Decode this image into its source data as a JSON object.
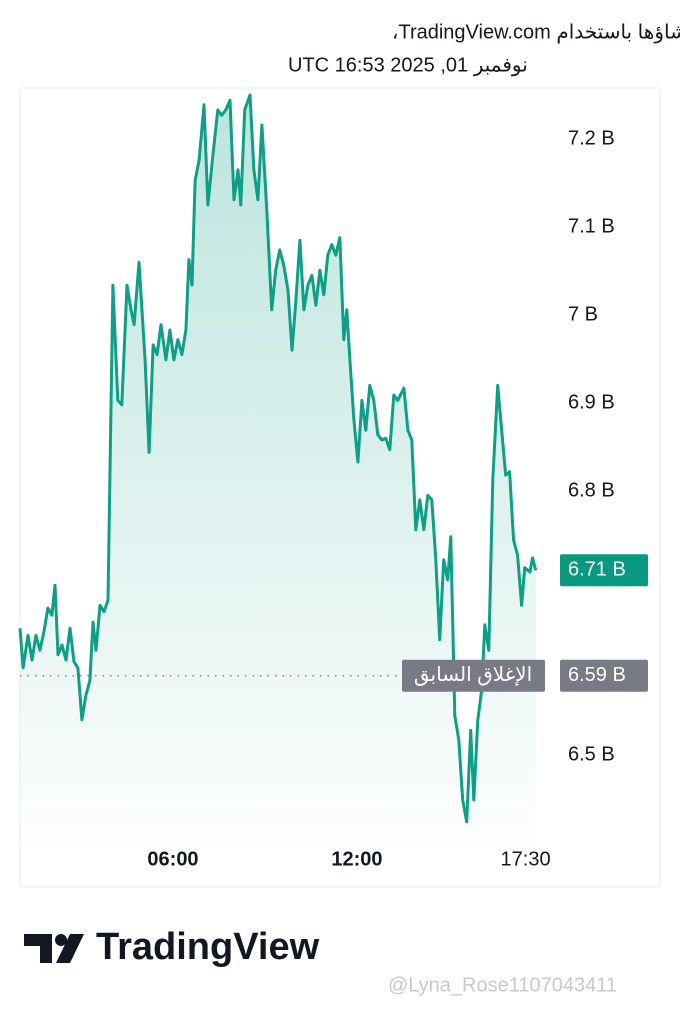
{
  "header": {
    "line1": "تم إنشاؤها باستخدام TradingView.com،",
    "line2": "نوفمبر 01, 2025 16:53 UTC"
  },
  "chart_data": {
    "type": "area",
    "color": "#0e9f86",
    "x": [
      1.01,
      1.11,
      1.27,
      1.4,
      1.53,
      1.66,
      1.79,
      1.92,
      2.05,
      2.15,
      2.25,
      2.38,
      2.51,
      2.64,
      2.77,
      2.9,
      3.03,
      3.16,
      3.29,
      3.39,
      3.49,
      3.62,
      3.75,
      3.88,
      4.04,
      4.2,
      4.33,
      4.5,
      4.63,
      4.73,
      4.89,
      5.09,
      5.22,
      5.35,
      5.48,
      5.61,
      5.77,
      5.9,
      6.03,
      6.16,
      6.29,
      6.42,
      6.52,
      6.62,
      6.72,
      6.85,
      7.01,
      7.14,
      7.3,
      7.46,
      7.59,
      7.72,
      7.86,
      7.99,
      8.12,
      8.21,
      8.34,
      8.51,
      8.64,
      8.77,
      8.9,
      9.06,
      9.22,
      9.35,
      9.48,
      9.61,
      9.75,
      9.88,
      10.01,
      10.14,
      10.27,
      10.4,
      10.53,
      10.66,
      10.79,
      10.92,
      11.05,
      11.18,
      11.31,
      11.44,
      11.57,
      11.67,
      11.77,
      11.9,
      12.03,
      12.16,
      12.29,
      12.42,
      12.55,
      12.68,
      12.81,
      12.94,
      13.07,
      13.2,
      13.33,
      13.53,
      13.66,
      13.79,
      13.92,
      14.05,
      14.18,
      14.31,
      14.44,
      14.57,
      14.7,
      14.83,
      14.96,
      15.06,
      15.19,
      15.32,
      15.45,
      15.58,
      15.71,
      15.81,
      15.94,
      16.07,
      16.17,
      16.3,
      16.43,
      16.59,
      16.72,
      16.85,
      16.98,
      17.11,
      17.24,
      17.37,
      17.47,
      17.64,
      17.73,
      17.83
    ],
    "values": [
      6.644,
      6.599,
      6.636,
      6.608,
      6.636,
      6.619,
      6.64,
      6.667,
      6.659,
      6.693,
      6.614,
      6.625,
      6.608,
      6.644,
      6.606,
      6.599,
      6.54,
      6.568,
      6.585,
      6.651,
      6.619,
      6.67,
      6.663,
      6.676,
      7.034,
      6.903,
      6.898,
      7.034,
      7.006,
      6.989,
      7.06,
      6.949,
      6.844,
      6.966,
      6.955,
      6.989,
      6.949,
      6.983,
      6.949,
      6.972,
      6.955,
      6.983,
      7.063,
      7.034,
      7.153,
      7.176,
      7.239,
      7.125,
      7.182,
      7.233,
      7.227,
      7.233,
      7.244,
      7.131,
      7.165,
      7.125,
      7.233,
      7.25,
      7.165,
      7.131,
      7.216,
      7.119,
      7.006,
      7.051,
      7.074,
      7.057,
      7.028,
      6.96,
      7.017,
      7.085,
      7.006,
      7.034,
      7.045,
      7.011,
      7.051,
      7.023,
      7.068,
      7.08,
      7.068,
      7.088,
      6.972,
      7.006,
      6.949,
      6.881,
      6.833,
      6.903,
      6.869,
      6.92,
      6.903,
      6.864,
      6.858,
      6.86,
      6.847,
      6.909,
      6.903,
      6.917,
      6.869,
      6.858,
      6.756,
      6.79,
      6.756,
      6.795,
      6.79,
      6.722,
      6.631,
      6.722,
      6.699,
      6.748,
      6.545,
      6.517,
      6.449,
      6.424,
      6.528,
      6.449,
      6.54,
      6.574,
      6.648,
      6.619,
      6.813,
      6.92,
      6.869,
      6.818,
      6.822,
      6.744,
      6.727,
      6.67,
      6.713,
      6.708,
      6.724,
      6.71
    ],
    "xlim": [
      1.01,
      17.97
    ],
    "xticks": [
      {
        "value": 6,
        "label": "06:00"
      },
      {
        "value": 12,
        "label": "12:00"
      },
      {
        "value": 17.5,
        "label": "17:30"
      }
    ],
    "ylim": [
      6.35,
      7.258
    ],
    "yticks": [
      {
        "value": 6.5,
        "label": "6.5 B"
      },
      {
        "value": 6.8,
        "label": "6.8 B"
      },
      {
        "value": 6.9,
        "label": "6.9 B"
      },
      {
        "value": 7,
        "label": "7 B"
      },
      {
        "value": 7.1,
        "label": "7.1 B"
      },
      {
        "value": 7.2,
        "label": "7.2 B"
      }
    ],
    "last_price": {
      "value": 6.71,
      "label": "6.71 B",
      "color": "#089981"
    },
    "previous_close": {
      "name": "الإغلاق السابق",
      "value": 6.59,
      "label": "6.59 B",
      "color": "#787b86"
    }
  },
  "footer": {
    "brand": "TradingView",
    "watermark": "@Lyna_Rose1107043411"
  }
}
